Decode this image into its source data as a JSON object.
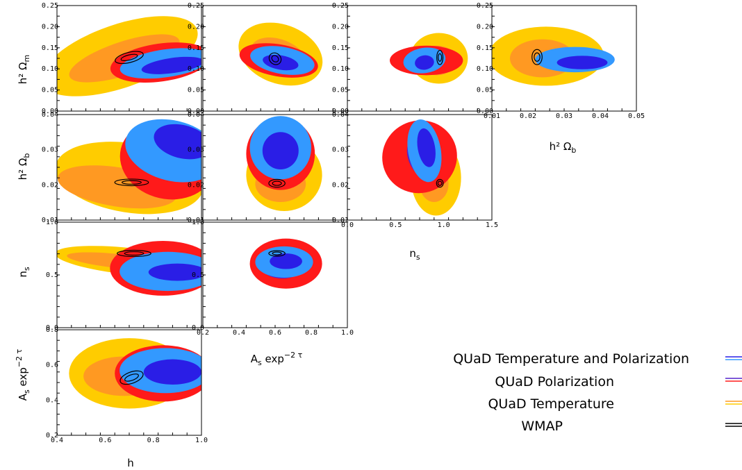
{
  "chart_data": {
    "type": "contour",
    "x_tick_labels": {
      "h": [
        "0.4",
        "0.6",
        "0.8",
        "1.0"
      ],
      "As": [
        "0.2",
        "0.4",
        "0.6",
        "0.8",
        "1.0"
      ],
      "ns": [
        "0.0",
        "0.5",
        "1.0",
        "1.5"
      ],
      "ob": [
        "0.01",
        "0.02",
        "0.03",
        "0.04",
        "0.05"
      ]
    },
    "y_tick_labels": {
      "om": [
        "0.00",
        "0.05",
        "0.10",
        "0.15",
        "0.20",
        "0.25"
      ],
      "ob": [
        "0.01",
        "0.02",
        "0.03",
        "0.04"
      ],
      "ns": [
        "0.0",
        "0.5",
        "1.0"
      ],
      "As": [
        "0.2",
        "0.4",
        "0.6",
        "0.8"
      ]
    },
    "series": [
      {
        "name": "QUaD Temperature and Polarization",
        "color": "#3399ff",
        "inner_color": "#2a1ee6"
      },
      {
        "name": "QUaD Polarization",
        "color": "#ff1a1a",
        "inner_color": "#5522cc"
      },
      {
        "name": "QUaD Temperature",
        "color": "#ffcc00",
        "inner_color": "#ff9922"
      },
      {
        "name": "WMAP",
        "color": "#000000"
      }
    ],
    "panels": [
      {
        "id": "h-om",
        "x": "h",
        "y": "om",
        "blobs": [
          {
            "set": "T",
            "level": "outer",
            "cx": 0.66,
            "cy": 0.13,
            "rx": 0.34,
            "ry": 0.075,
            "rot": -19
          },
          {
            "set": "T",
            "level": "inner",
            "cx": 0.68,
            "cy": 0.125,
            "rx": 0.24,
            "ry": 0.04,
            "rot": -18
          },
          {
            "set": "P",
            "level": "outer",
            "cx": 0.83,
            "cy": 0.115,
            "rx": 0.21,
            "ry": 0.045,
            "rot": -8
          },
          {
            "set": "TP",
            "level": "outer",
            "cx": 0.85,
            "cy": 0.113,
            "rx": 0.19,
            "ry": 0.033,
            "rot": -8
          },
          {
            "set": "TP",
            "level": "inner",
            "cx": 0.88,
            "cy": 0.108,
            "rx": 0.13,
            "ry": 0.018,
            "rot": -8
          },
          {
            "set": "W",
            "level": "outer",
            "cx": 0.7,
            "cy": 0.127,
            "rx": 0.06,
            "ry": 0.012,
            "rot": -14
          },
          {
            "set": "W",
            "level": "inner",
            "cx": 0.7,
            "cy": 0.127,
            "rx": 0.035,
            "ry": 0.006,
            "rot": -14
          }
        ]
      },
      {
        "id": "As-om",
        "x": "As",
        "y": "om",
        "blobs": [
          {
            "set": "T",
            "level": "outer",
            "cx": 0.63,
            "cy": 0.135,
            "rx": 0.24,
            "ry": 0.07,
            "rot": 20
          },
          {
            "set": "T",
            "level": "inner",
            "cx": 0.62,
            "cy": 0.13,
            "rx": 0.16,
            "ry": 0.04,
            "rot": 20
          },
          {
            "set": "P",
            "level": "outer",
            "cx": 0.62,
            "cy": 0.12,
            "rx": 0.22,
            "ry": 0.038,
            "rot": 10
          },
          {
            "set": "TP",
            "level": "outer",
            "cx": 0.64,
            "cy": 0.12,
            "rx": 0.18,
            "ry": 0.032,
            "rot": 10
          },
          {
            "set": "TP",
            "level": "inner",
            "cx": 0.63,
            "cy": 0.115,
            "rx": 0.1,
            "ry": 0.017,
            "rot": 10
          },
          {
            "set": "W",
            "level": "outer",
            "cx": 0.6,
            "cy": 0.124,
            "rx": 0.035,
            "ry": 0.013,
            "rot": 40
          },
          {
            "set": "W",
            "level": "inner",
            "cx": 0.6,
            "cy": 0.124,
            "rx": 0.02,
            "ry": 0.007,
            "rot": 40
          }
        ]
      },
      {
        "id": "ns-om",
        "x": "ns",
        "y": "om",
        "blobs": [
          {
            "set": "T",
            "level": "outer",
            "cx": 0.95,
            "cy": 0.125,
            "rx": 0.3,
            "ry": 0.06,
            "rot": 0
          },
          {
            "set": "T",
            "level": "inner",
            "cx": 0.93,
            "cy": 0.12,
            "rx": 0.2,
            "ry": 0.035,
            "rot": 0
          },
          {
            "set": "P",
            "level": "outer",
            "cx": 0.82,
            "cy": 0.12,
            "rx": 0.38,
            "ry": 0.035,
            "rot": 0
          },
          {
            "set": "P",
            "level": "inner",
            "cx": 0.73,
            "cy": 0.11,
            "rx": 0.1,
            "ry": 0.013,
            "rot": 0
          },
          {
            "set": "TP",
            "level": "outer",
            "cx": 0.8,
            "cy": 0.12,
            "rx": 0.22,
            "ry": 0.03,
            "rot": -8
          },
          {
            "set": "TP",
            "level": "inner",
            "cx": 0.8,
            "cy": 0.115,
            "rx": 0.1,
            "ry": 0.017,
            "rot": -8
          },
          {
            "set": "W",
            "level": "outer",
            "cx": 0.96,
            "cy": 0.127,
            "rx": 0.032,
            "ry": 0.017,
            "rot": 0
          },
          {
            "set": "W",
            "level": "inner",
            "cx": 0.96,
            "cy": 0.127,
            "rx": 0.018,
            "ry": 0.009,
            "rot": 0
          }
        ]
      },
      {
        "id": "ob-om",
        "x": "ob",
        "y": "om",
        "blobs": [
          {
            "set": "T",
            "level": "outer",
            "cx": 0.025,
            "cy": 0.13,
            "rx": 0.016,
            "ry": 0.07,
            "rot": 0
          },
          {
            "set": "T",
            "level": "inner",
            "cx": 0.024,
            "cy": 0.125,
            "rx": 0.009,
            "ry": 0.045,
            "rot": 0
          },
          {
            "set": "TP",
            "level": "outer",
            "cx": 0.033,
            "cy": 0.122,
            "rx": 0.011,
            "ry": 0.03,
            "rot": 0
          },
          {
            "set": "TP",
            "level": "inner",
            "cx": 0.035,
            "cy": 0.115,
            "rx": 0.007,
            "ry": 0.016,
            "rot": 0
          },
          {
            "set": "W",
            "level": "outer",
            "cx": 0.0225,
            "cy": 0.128,
            "rx": 0.0014,
            "ry": 0.018,
            "rot": 0
          },
          {
            "set": "W",
            "level": "inner",
            "cx": 0.0225,
            "cy": 0.128,
            "rx": 0.0008,
            "ry": 0.01,
            "rot": 0
          }
        ]
      },
      {
        "id": "h-ob",
        "x": "h",
        "y": "ob",
        "blobs": [
          {
            "set": "T",
            "level": "outer",
            "cx": 0.7,
            "cy": 0.024,
            "rx": 0.31,
            "ry": 0.0115,
            "rot": 9
          },
          {
            "set": "T",
            "level": "inner",
            "cx": 0.65,
            "cy": 0.021,
            "rx": 0.25,
            "ry": 0.0065,
            "rot": 9
          },
          {
            "set": "P",
            "level": "outer",
            "cx": 0.86,
            "cy": 0.03,
            "rx": 0.2,
            "ry": 0.013,
            "rot": 13
          },
          {
            "set": "TP",
            "level": "outer",
            "cx": 0.88,
            "cy": 0.033,
            "rx": 0.2,
            "ry": 0.01,
            "rot": 14
          },
          {
            "set": "TP",
            "level": "inner",
            "cx": 0.92,
            "cy": 0.036,
            "rx": 0.12,
            "ry": 0.0055,
            "rot": 14
          },
          {
            "set": "W",
            "level": "outer",
            "cx": 0.71,
            "cy": 0.0225,
            "rx": 0.07,
            "ry": 0.0011,
            "rot": 0
          },
          {
            "set": "W",
            "level": "inner",
            "cx": 0.71,
            "cy": 0.0225,
            "rx": 0.04,
            "ry": 0.0006,
            "rot": 0
          }
        ]
      },
      {
        "id": "As-ob",
        "x": "As",
        "y": "ob",
        "blobs": [
          {
            "set": "T",
            "level": "outer",
            "cx": 0.65,
            "cy": 0.025,
            "rx": 0.21,
            "ry": 0.012,
            "rot": 0
          },
          {
            "set": "T",
            "level": "inner",
            "cx": 0.63,
            "cy": 0.022,
            "rx": 0.14,
            "ry": 0.006,
            "rot": 0
          },
          {
            "set": "P",
            "level": "outer",
            "cx": 0.63,
            "cy": 0.032,
            "rx": 0.19,
            "ry": 0.012,
            "rot": 0
          },
          {
            "set": "TP",
            "level": "outer",
            "cx": 0.63,
            "cy": 0.034,
            "rx": 0.17,
            "ry": 0.0105,
            "rot": 0
          },
          {
            "set": "TP",
            "level": "inner",
            "cx": 0.63,
            "cy": 0.033,
            "rx": 0.1,
            "ry": 0.0062,
            "rot": 0
          },
          {
            "set": "W",
            "level": "outer",
            "cx": 0.61,
            "cy": 0.0222,
            "rx": 0.045,
            "ry": 0.0013,
            "rot": 0
          },
          {
            "set": "W",
            "level": "inner",
            "cx": 0.61,
            "cy": 0.0222,
            "rx": 0.025,
            "ry": 0.0007,
            "rot": 0
          }
        ]
      },
      {
        "id": "ns-ob",
        "x": "ns",
        "y": "ob",
        "blobs": [
          {
            "set": "T",
            "level": "outer",
            "cx": 0.92,
            "cy": 0.024,
            "rx": 0.26,
            "ry": 0.0125,
            "rot": 0
          },
          {
            "set": "T",
            "level": "inner",
            "cx": 0.9,
            "cy": 0.022,
            "rx": 0.15,
            "ry": 0.006,
            "rot": 0
          },
          {
            "set": "P",
            "level": "outer",
            "cx": 0.75,
            "cy": 0.031,
            "rx": 0.39,
            "ry": 0.012,
            "rot": -22
          },
          {
            "set": "P",
            "level": "inner",
            "cx": 0.77,
            "cy": 0.031,
            "rx": 0.14,
            "ry": 0.007,
            "rot": -20
          },
          {
            "set": "TP",
            "level": "outer",
            "cx": 0.8,
            "cy": 0.033,
            "rx": 0.17,
            "ry": 0.0105,
            "rot": -10
          },
          {
            "set": "TP",
            "level": "inner",
            "cx": 0.82,
            "cy": 0.034,
            "rx": 0.09,
            "ry": 0.0065,
            "rot": -10
          },
          {
            "set": "W",
            "level": "outer",
            "cx": 0.96,
            "cy": 0.0222,
            "rx": 0.035,
            "ry": 0.0013,
            "rot": 0
          },
          {
            "set": "W",
            "level": "inner",
            "cx": 0.96,
            "cy": 0.0222,
            "rx": 0.02,
            "ry": 0.0007,
            "rot": 0
          }
        ]
      },
      {
        "id": "h-ns",
        "x": "h",
        "y": "ns",
        "blobs": [
          {
            "set": "T",
            "level": "outer",
            "cx": 0.7,
            "cy": 0.85,
            "rx": 0.31,
            "ry": 0.17,
            "rot": 6
          },
          {
            "set": "T",
            "level": "inner",
            "cx": 0.66,
            "cy": 0.85,
            "rx": 0.22,
            "ry": 0.09,
            "rot": 6
          },
          {
            "set": "P",
            "level": "outer",
            "cx": 0.84,
            "cy": 0.76,
            "rx": 0.22,
            "ry": 0.35,
            "rot": 0
          },
          {
            "set": "P",
            "level": "inner",
            "cx": 0.88,
            "cy": 0.72,
            "rx": 0.12,
            "ry": 0.16,
            "rot": 0
          },
          {
            "set": "TP",
            "level": "outer",
            "cx": 0.86,
            "cy": 0.72,
            "rx": 0.2,
            "ry": 0.25,
            "rot": 0
          },
          {
            "set": "TP",
            "level": "inner",
            "cx": 0.9,
            "cy": 0.71,
            "rx": 0.12,
            "ry": 0.11,
            "rot": 0
          },
          {
            "set": "W",
            "level": "outer",
            "cx": 0.72,
            "cy": 0.95,
            "rx": 0.07,
            "ry": 0.04,
            "rot": 0
          },
          {
            "set": "W",
            "level": "inner",
            "cx": 0.72,
            "cy": 0.95,
            "rx": 0.04,
            "ry": 0.022,
            "rot": 0
          }
        ]
      },
      {
        "id": "As-ns",
        "x": "As",
        "y": "ns",
        "blobs": [
          {
            "set": "P",
            "level": "outer",
            "cx": 0.66,
            "cy": 0.82,
            "rx": 0.2,
            "ry": 0.32,
            "rot": 0
          },
          {
            "set": "P",
            "level": "inner",
            "cx": 0.64,
            "cy": 0.79,
            "rx": 0.12,
            "ry": 0.16,
            "rot": 0
          },
          {
            "set": "TP",
            "level": "outer",
            "cx": 0.65,
            "cy": 0.84,
            "rx": 0.16,
            "ry": 0.2,
            "rot": 0
          },
          {
            "set": "TP",
            "level": "inner",
            "cx": 0.66,
            "cy": 0.85,
            "rx": 0.09,
            "ry": 0.1,
            "rot": 0
          },
          {
            "set": "W",
            "level": "outer",
            "cx": 0.61,
            "cy": 0.95,
            "rx": 0.045,
            "ry": 0.035,
            "rot": 0
          },
          {
            "set": "W",
            "level": "inner",
            "cx": 0.61,
            "cy": 0.95,
            "rx": 0.025,
            "ry": 0.018,
            "rot": 0
          }
        ]
      },
      {
        "id": "h-As",
        "x": "h",
        "y": "As",
        "blobs": [
          {
            "set": "T",
            "level": "outer",
            "cx": 0.7,
            "cy": 0.64,
            "rx": 0.25,
            "ry": 0.25,
            "rot": 0
          },
          {
            "set": "T",
            "level": "inner",
            "cx": 0.68,
            "cy": 0.62,
            "rx": 0.17,
            "ry": 0.14,
            "rot": 0
          },
          {
            "set": "P",
            "level": "outer",
            "cx": 0.84,
            "cy": 0.64,
            "rx": 0.2,
            "ry": 0.2,
            "rot": 0
          },
          {
            "set": "TP",
            "level": "outer",
            "cx": 0.85,
            "cy": 0.66,
            "rx": 0.19,
            "ry": 0.16,
            "rot": 0
          },
          {
            "set": "TP",
            "level": "inner",
            "cx": 0.88,
            "cy": 0.65,
            "rx": 0.12,
            "ry": 0.09,
            "rot": 0
          },
          {
            "set": "W",
            "level": "outer",
            "cx": 0.71,
            "cy": 0.61,
            "rx": 0.05,
            "ry": 0.04,
            "rot": -20
          },
          {
            "set": "W",
            "level": "inner",
            "cx": 0.71,
            "cy": 0.61,
            "rx": 0.03,
            "ry": 0.02,
            "rot": -20
          }
        ]
      }
    ]
  },
  "labels": {
    "y_om": "h² Ω",
    "y_om_sub": "m",
    "y_ob": "h² Ω",
    "y_ob_sub": "b",
    "y_ns": "n",
    "y_ns_sub": "s",
    "y_As": "A",
    "y_As_sub": "s",
    "y_As_rest": " exp",
    "y_As_sup": "−2 τ",
    "x_ob": "h² Ω",
    "x_ob_sub": "b",
    "x_ns": "n",
    "x_ns_sub": "s",
    "x_As": "A",
    "x_As_sub": "s",
    "x_As_rest": " exp",
    "x_As_sup": "−2 τ",
    "x_h": "h"
  }
}
